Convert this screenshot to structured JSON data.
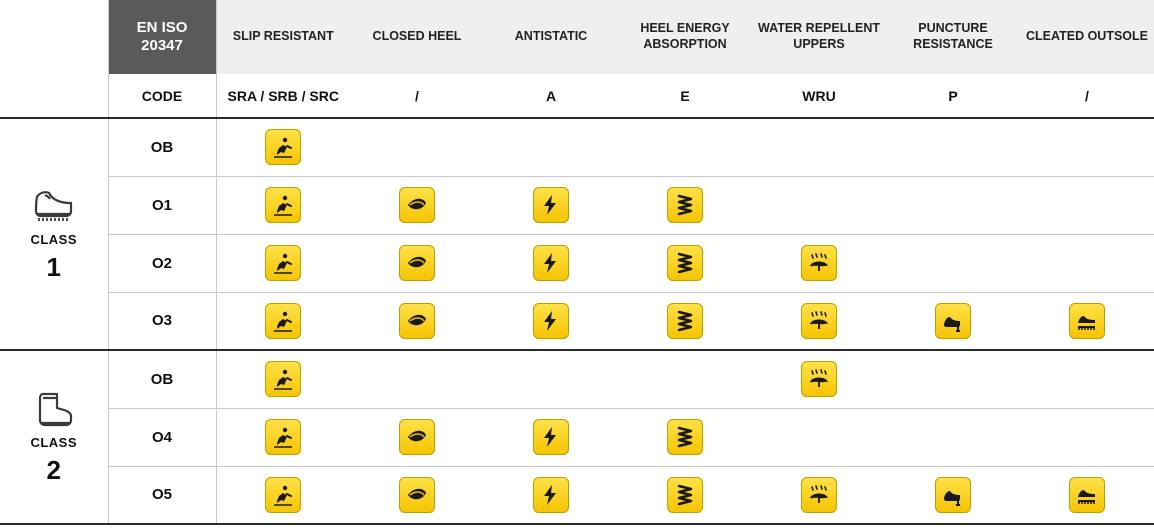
{
  "standard": {
    "line1": "EN ISO",
    "line2": "20347"
  },
  "code_header": "CODE",
  "features": [
    {
      "label": "SLIP RESISTANT",
      "code": "SRA / SRB / SRC",
      "icon": "slip"
    },
    {
      "label": "CLOSED HEEL",
      "code": "/",
      "icon": "closed-heel"
    },
    {
      "label": "ANTISTATIC",
      "code": "A",
      "icon": "antistatic"
    },
    {
      "label": "HEEL ENERGY ABSORPTION",
      "code": "E",
      "icon": "heel-energy"
    },
    {
      "label": "WATER REPELLENT UPPERS",
      "code": "WRU",
      "icon": "water-repellent"
    },
    {
      "label": "PUNCTURE RESISTANCE",
      "code": "P",
      "icon": "puncture"
    },
    {
      "label": "CLEATED OUTSOLE",
      "code": "/",
      "icon": "cleated"
    }
  ],
  "classes": [
    {
      "label": "CLASS",
      "num": "1",
      "boot_type": "shoe",
      "rows": [
        {
          "code": "OB",
          "cells": [
            true,
            false,
            false,
            false,
            false,
            false,
            false
          ]
        },
        {
          "code": "O1",
          "cells": [
            true,
            true,
            true,
            true,
            false,
            false,
            false
          ]
        },
        {
          "code": "O2",
          "cells": [
            true,
            true,
            true,
            true,
            true,
            false,
            false
          ]
        },
        {
          "code": "O3",
          "cells": [
            true,
            true,
            true,
            true,
            true,
            true,
            true
          ]
        }
      ]
    },
    {
      "label": "CLASS",
      "num": "2",
      "boot_type": "wellington",
      "rows": [
        {
          "code": "OB",
          "cells": [
            true,
            false,
            false,
            false,
            true,
            false,
            false
          ]
        },
        {
          "code": "O4",
          "cells": [
            true,
            true,
            true,
            true,
            false,
            false,
            false
          ]
        },
        {
          "code": "O5",
          "cells": [
            true,
            true,
            true,
            true,
            true,
            true,
            true
          ]
        }
      ]
    }
  ],
  "colors": {
    "header_bg": "#5a5a5a",
    "header_text": "#ffffff",
    "feature_bg": "#efefef",
    "divider_dark": "#2a2a2a",
    "divider_light": "#c9c9c9",
    "badge_top": "#ffe24a",
    "badge_bottom": "#f5c400",
    "badge_border": "#bfa000",
    "icon_stroke": "#1a1a1a"
  }
}
